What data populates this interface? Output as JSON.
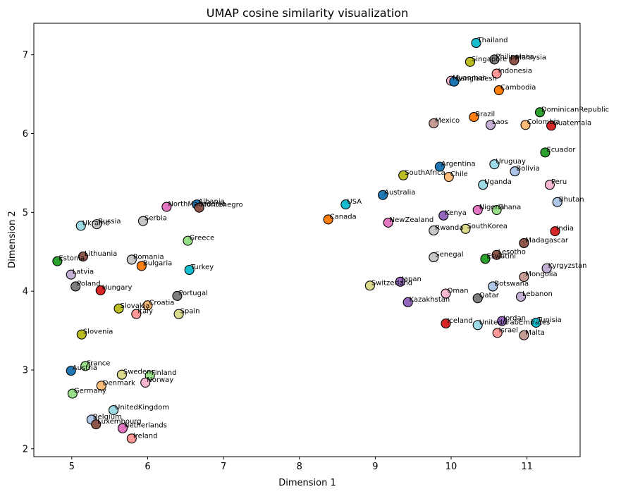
{
  "chart_data": {
    "type": "scatter",
    "title": "UMAP cosine similarity visualization",
    "xlabel": "Dimension 1",
    "ylabel": "Dimension 2",
    "xlim": [
      4.5,
      11.7
    ],
    "ylim": [
      1.9,
      7.4
    ],
    "xticks": [
      5,
      6,
      7,
      8,
      9,
      10,
      11
    ],
    "yticks": [
      2,
      3,
      4,
      5,
      6,
      7
    ],
    "grid": false,
    "points": [
      {
        "label": "Thailand",
        "x": 10.33,
        "y": 7.15,
        "color": "#17becf"
      },
      {
        "label": "Philippines",
        "x": 10.57,
        "y": 6.94,
        "color": "#7f7f7f"
      },
      {
        "label": "Malaysia",
        "x": 10.83,
        "y": 6.93,
        "color": "#8c564b"
      },
      {
        "label": "Singapore",
        "x": 10.25,
        "y": 6.91,
        "color": "#bcbd22"
      },
      {
        "label": "Indonesia",
        "x": 10.6,
        "y": 6.76,
        "color": "#ff9896"
      },
      {
        "label": "Myanmar",
        "x": 10.0,
        "y": 6.67,
        "color": "#f7b6d2"
      },
      {
        "label": "Bangladesh",
        "x": 10.04,
        "y": 6.66,
        "color": "#1f77b4"
      },
      {
        "label": "Cambodia",
        "x": 10.63,
        "y": 6.55,
        "color": "#ff7f0e"
      },
      {
        "label": "DominicanRepublic",
        "x": 11.17,
        "y": 6.27,
        "color": "#2ca02c"
      },
      {
        "label": "Brazil",
        "x": 10.3,
        "y": 6.21,
        "color": "#ff7f0e"
      },
      {
        "label": "Mexico",
        "x": 9.77,
        "y": 6.13,
        "color": "#c49c94"
      },
      {
        "label": "Laos",
        "x": 10.52,
        "y": 6.11,
        "color": "#c5b0d5"
      },
      {
        "label": "Colombia",
        "x": 10.98,
        "y": 6.11,
        "color": "#ffbb78"
      },
      {
        "label": "Guatemala",
        "x": 11.32,
        "y": 6.1,
        "color": "#d62728"
      },
      {
        "label": "Ecuador",
        "x": 11.24,
        "y": 5.76,
        "color": "#2ca02c"
      },
      {
        "label": "Uruguay",
        "x": 10.57,
        "y": 5.61,
        "color": "#9edae5"
      },
      {
        "label": "Argentina",
        "x": 9.85,
        "y": 5.58,
        "color": "#1f77b4"
      },
      {
        "label": "Bolivia",
        "x": 10.84,
        "y": 5.52,
        "color": "#aec7e8"
      },
      {
        "label": "SouthAfrica",
        "x": 9.37,
        "y": 5.47,
        "color": "#bcbd22"
      },
      {
        "label": "Chile",
        "x": 9.97,
        "y": 5.45,
        "color": "#ffbb78"
      },
      {
        "label": "Uganda",
        "x": 10.42,
        "y": 5.35,
        "color": "#9edae5"
      },
      {
        "label": "Peru",
        "x": 11.3,
        "y": 5.35,
        "color": "#f7b6d2"
      },
      {
        "label": "Australia",
        "x": 9.1,
        "y": 5.22,
        "color": "#1f77b4"
      },
      {
        "label": "Bhutan",
        "x": 11.4,
        "y": 5.13,
        "color": "#aec7e8"
      },
      {
        "label": "USA",
        "x": 8.61,
        "y": 5.1,
        "color": "#17becf"
      },
      {
        "label": "Nigeria",
        "x": 10.35,
        "y": 5.03,
        "color": "#e377c2"
      },
      {
        "label": "Ghana",
        "x": 10.6,
        "y": 5.03,
        "color": "#98df8a"
      },
      {
        "label": "Kenya",
        "x": 9.9,
        "y": 4.96,
        "color": "#9467bd"
      },
      {
        "label": "Canada",
        "x": 8.38,
        "y": 4.91,
        "color": "#ff7f0e"
      },
      {
        "label": "NewZealand",
        "x": 9.17,
        "y": 4.87,
        "color": "#e377c2"
      },
      {
        "label": "SouthKorea",
        "x": 10.19,
        "y": 4.79,
        "color": "#dbdb8d"
      },
      {
        "label": "Rwanda",
        "x": 9.77,
        "y": 4.77,
        "color": "#c7c7c7"
      },
      {
        "label": "India",
        "x": 11.37,
        "y": 4.76,
        "color": "#d62728"
      },
      {
        "label": "Madagascar",
        "x": 10.96,
        "y": 4.61,
        "color": "#8c564b"
      },
      {
        "label": "Lesotho",
        "x": 10.6,
        "y": 4.46,
        "color": "#8c564b"
      },
      {
        "label": "Senegal",
        "x": 9.77,
        "y": 4.43,
        "color": "#c7c7c7"
      },
      {
        "label": "Eswatini",
        "x": 10.45,
        "y": 4.41,
        "color": "#2ca02c"
      },
      {
        "label": "Kyrgyzstan",
        "x": 11.26,
        "y": 4.29,
        "color": "#c5b0d5"
      },
      {
        "label": "Mongolia",
        "x": 10.96,
        "y": 4.18,
        "color": "#c49c94"
      },
      {
        "label": "Japan",
        "x": 9.33,
        "y": 4.12,
        "color": "#9467bd"
      },
      {
        "label": "Switzerland",
        "x": 8.93,
        "y": 4.07,
        "color": "#dbdb8d"
      },
      {
        "label": "Botswana",
        "x": 10.55,
        "y": 4.06,
        "color": "#aec7e8"
      },
      {
        "label": "Oman",
        "x": 9.93,
        "y": 3.97,
        "color": "#f7b6d2"
      },
      {
        "label": "Lebanon",
        "x": 10.92,
        "y": 3.93,
        "color": "#c5b0d5"
      },
      {
        "label": "Qatar",
        "x": 10.35,
        "y": 3.91,
        "color": "#7f7f7f"
      },
      {
        "label": "Kazakhstan",
        "x": 9.43,
        "y": 3.86,
        "color": "#9467bd"
      },
      {
        "label": "Jordan",
        "x": 10.67,
        "y": 3.62,
        "color": "#9467bd"
      },
      {
        "label": "Tunisia",
        "x": 11.12,
        "y": 3.6,
        "color": "#17becf"
      },
      {
        "label": "Iceland",
        "x": 9.93,
        "y": 3.59,
        "color": "#d62728"
      },
      {
        "label": "UnitedArabEmirates",
        "x": 10.35,
        "y": 3.57,
        "color": "#9edae5"
      },
      {
        "label": "Israel",
        "x": 10.61,
        "y": 3.47,
        "color": "#ff9896"
      },
      {
        "label": "Malta",
        "x": 10.96,
        "y": 3.44,
        "color": "#c49c94"
      },
      {
        "label": "Albania",
        "x": 6.65,
        "y": 5.1,
        "color": "#1f77b4"
      },
      {
        "label": "NorthMacedonia",
        "x": 6.25,
        "y": 5.07,
        "color": "#e377c2"
      },
      {
        "label": "Montenegro",
        "x": 6.68,
        "y": 5.06,
        "color": "#8c564b"
      },
      {
        "label": "Serbia",
        "x": 5.94,
        "y": 4.89,
        "color": "#c7c7c7"
      },
      {
        "label": "Russia",
        "x": 5.33,
        "y": 4.85,
        "color": "#c7c7c7"
      },
      {
        "label": "Ukraine",
        "x": 5.12,
        "y": 4.83,
        "color": "#9edae5"
      },
      {
        "label": "Greece",
        "x": 6.53,
        "y": 4.64,
        "color": "#98df8a"
      },
      {
        "label": "Lithuania",
        "x": 5.15,
        "y": 4.44,
        "color": "#8c564b"
      },
      {
        "label": "Romania",
        "x": 5.79,
        "y": 4.4,
        "color": "#c7c7c7"
      },
      {
        "label": "Estonia",
        "x": 4.81,
        "y": 4.38,
        "color": "#2ca02c"
      },
      {
        "label": "Bulgaria",
        "x": 5.92,
        "y": 4.32,
        "color": "#ff7f0e"
      },
      {
        "label": "Turkey",
        "x": 6.55,
        "y": 4.27,
        "color": "#17becf"
      },
      {
        "label": "Latvia",
        "x": 4.99,
        "y": 4.21,
        "color": "#c5b0d5"
      },
      {
        "label": "Poland",
        "x": 5.05,
        "y": 4.06,
        "color": "#7f7f7f"
      },
      {
        "label": "Hungary",
        "x": 5.38,
        "y": 4.01,
        "color": "#d62728"
      },
      {
        "label": "Portugal",
        "x": 6.39,
        "y": 3.94,
        "color": "#7f7f7f"
      },
      {
        "label": "Croatia",
        "x": 6.0,
        "y": 3.82,
        "color": "#ffbb78"
      },
      {
        "label": "Slovakia",
        "x": 5.62,
        "y": 3.78,
        "color": "#bcbd22"
      },
      {
        "label": "Italy",
        "x": 5.85,
        "y": 3.71,
        "color": "#ff9896"
      },
      {
        "label": "Spain",
        "x": 6.41,
        "y": 3.71,
        "color": "#dbdb8d"
      },
      {
        "label": "Slovenia",
        "x": 5.13,
        "y": 3.45,
        "color": "#bcbd22"
      },
      {
        "label": "France",
        "x": 5.18,
        "y": 3.05,
        "color": "#98df8a"
      },
      {
        "label": "Austria",
        "x": 4.99,
        "y": 2.99,
        "color": "#1f77b4"
      },
      {
        "label": "Sweden",
        "x": 5.66,
        "y": 2.94,
        "color": "#dbdb8d"
      },
      {
        "label": "Finland",
        "x": 6.03,
        "y": 2.93,
        "color": "#98df8a"
      },
      {
        "label": "Norway",
        "x": 5.97,
        "y": 2.84,
        "color": "#f7b6d2"
      },
      {
        "label": "Denmark",
        "x": 5.39,
        "y": 2.8,
        "color": "#ffbb78"
      },
      {
        "label": "Germany",
        "x": 5.01,
        "y": 2.7,
        "color": "#98df8a"
      },
      {
        "label": "UnitedKingdom",
        "x": 5.55,
        "y": 2.49,
        "color": "#9edae5"
      },
      {
        "label": "Belgium",
        "x": 5.26,
        "y": 2.37,
        "color": "#aec7e8"
      },
      {
        "label": "Luxembourg",
        "x": 5.32,
        "y": 2.31,
        "color": "#8c564b"
      },
      {
        "label": "Netherlands",
        "x": 5.67,
        "y": 2.26,
        "color": "#e377c2"
      },
      {
        "label": "Ireland",
        "x": 5.79,
        "y": 2.13,
        "color": "#ff9896"
      }
    ]
  }
}
